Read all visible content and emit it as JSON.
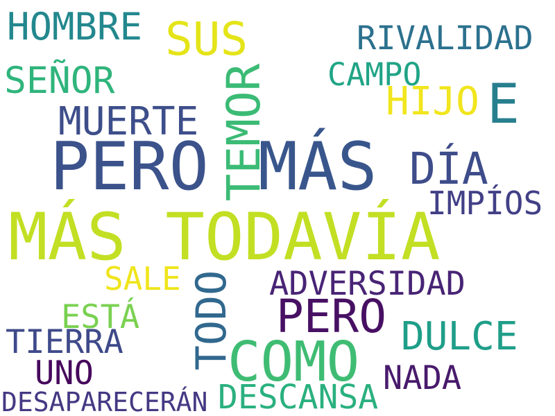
{
  "words": [
    {
      "text": "HOMBRE",
      "color": "#23888e"
    },
    {
      "text": "SUS",
      "color": "#e4e419"
    },
    {
      "text": "RIVALIDAD",
      "color": "#2c718e"
    },
    {
      "text": "SEÑOR",
      "color": "#2fb47c"
    },
    {
      "text": "TEMOR",
      "color": "#3bbb75"
    },
    {
      "text": "CAMPO",
      "color": "#20a486"
    },
    {
      "text": "HIJO",
      "color": "#f1e51d"
    },
    {
      "text": "E",
      "color": "#277f8e"
    },
    {
      "text": "MUERTE",
      "color": "#3d4e8a"
    },
    {
      "text": "PERO",
      "color": "#3b528b"
    },
    {
      "text": "MÁS",
      "color": "#39568c"
    },
    {
      "text": "DÍA",
      "color": "#3e4c8a"
    },
    {
      "text": "IMPÍOS",
      "color": "#424086"
    },
    {
      "text": "MÁS TODAVÍA",
      "color": "#c2df23"
    },
    {
      "text": "SALE",
      "color": "#efe51c"
    },
    {
      "text": "TODO",
      "color": "#31688e"
    },
    {
      "text": "ADVERSIDAD",
      "color": "#482475"
    },
    {
      "text": "PERO",
      "color": "#471063"
    },
    {
      "text": "ESTÁ",
      "color": "#7ad151"
    },
    {
      "text": "DULCE",
      "color": "#1f9e89"
    },
    {
      "text": "TIERRA",
      "color": "#3e4a89"
    },
    {
      "text": "COMO",
      "color": "#3fbc73"
    },
    {
      "text": "UNO",
      "color": "#46085c"
    },
    {
      "text": "NADA",
      "color": "#481a6c"
    },
    {
      "text": "DESAPARECERÁN",
      "color": "#443983"
    },
    {
      "text": "DESCANSA",
      "color": "#2ab07f"
    }
  ]
}
